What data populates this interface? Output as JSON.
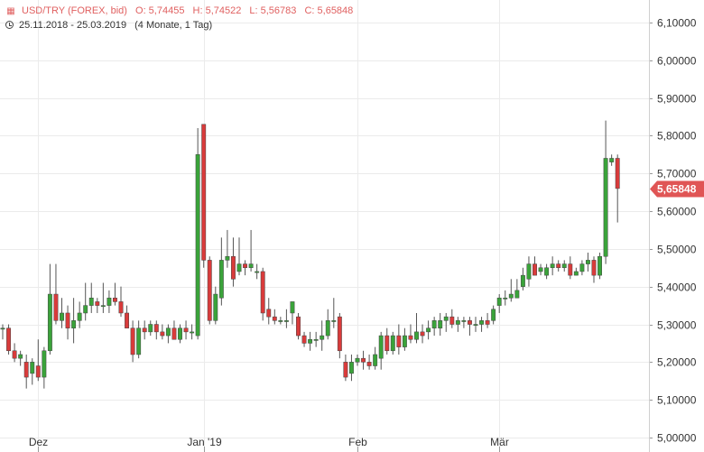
{
  "header": {
    "icon": "chart-icon",
    "symbol": "USD/TRY (FOREX, bid)",
    "open": "O: 5,74455",
    "high": "H: 5,74522",
    "low": "L: 5,56783",
    "close": "C: 5,65848",
    "range_icon": "clock-icon",
    "date_range": "25.11.2018 - 25.03.2019",
    "duration": "(4 Monate, 1 Tag)"
  },
  "colors": {
    "up": "#3aa33a",
    "down": "#d93b3b",
    "grid": "#ebebeb",
    "price_tag": "#e05555",
    "header_text": "#e06060"
  },
  "chart_data": {
    "type": "candlestick",
    "title": "USD/TRY (FOREX, bid)",
    "ylim": [
      5.0,
      6.14
    ],
    "y_ticks": [
      "6,10000",
      "6,00000",
      "5,90000",
      "5,80000",
      "5,70000",
      "5,60000",
      "5,50000",
      "5,40000",
      "5,30000",
      "5,20000",
      "5,10000",
      "5,00000"
    ],
    "x_labels": [
      {
        "label": "Dez",
        "index": 6
      },
      {
        "label": "Jan '19",
        "index": 34
      },
      {
        "label": "Feb",
        "index": 60
      },
      {
        "label": "Mär",
        "index": 84
      }
    ],
    "grid": true,
    "last_price_label": "5,65848",
    "candles": [
      [
        5.29,
        5.3,
        5.26,
        5.29
      ],
      [
        5.29,
        5.3,
        5.22,
        5.23
      ],
      [
        5.23,
        5.25,
        5.2,
        5.21
      ],
      [
        5.21,
        5.23,
        5.19,
        5.22
      ],
      [
        5.2,
        5.22,
        5.13,
        5.16
      ],
      [
        5.17,
        5.21,
        5.14,
        5.2
      ],
      [
        5.19,
        5.26,
        5.15,
        5.16
      ],
      [
        5.16,
        5.24,
        5.13,
        5.23
      ],
      [
        5.23,
        5.46,
        5.22,
        5.38
      ],
      [
        5.38,
        5.46,
        5.3,
        5.31
      ],
      [
        5.31,
        5.37,
        5.29,
        5.33
      ],
      [
        5.33,
        5.35,
        5.26,
        5.29
      ],
      [
        5.29,
        5.37,
        5.25,
        5.31
      ],
      [
        5.31,
        5.36,
        5.29,
        5.33
      ],
      [
        5.33,
        5.41,
        5.31,
        5.35
      ],
      [
        5.35,
        5.41,
        5.33,
        5.37
      ],
      [
        5.36,
        5.37,
        5.33,
        5.35
      ],
      [
        5.35,
        5.41,
        5.33,
        5.35
      ],
      [
        5.35,
        5.39,
        5.33,
        5.37
      ],
      [
        5.37,
        5.41,
        5.35,
        5.36
      ],
      [
        5.36,
        5.4,
        5.32,
        5.33
      ],
      [
        5.33,
        5.35,
        5.29,
        5.29
      ],
      [
        5.29,
        5.31,
        5.2,
        5.22
      ],
      [
        5.22,
        5.31,
        5.21,
        5.29
      ],
      [
        5.29,
        5.31,
        5.26,
        5.28
      ],
      [
        5.28,
        5.31,
        5.27,
        5.3
      ],
      [
        5.3,
        5.31,
        5.26,
        5.28
      ],
      [
        5.28,
        5.3,
        5.26,
        5.27
      ],
      [
        5.27,
        5.3,
        5.25,
        5.29
      ],
      [
        5.29,
        5.31,
        5.26,
        5.26
      ],
      [
        5.26,
        5.3,
        5.25,
        5.29
      ],
      [
        5.29,
        5.31,
        5.26,
        5.28
      ],
      [
        5.28,
        5.3,
        5.26,
        5.28
      ],
      [
        5.27,
        5.82,
        5.26,
        5.75
      ],
      [
        5.83,
        5.83,
        5.45,
        5.47
      ],
      [
        5.47,
        5.48,
        5.3,
        5.31
      ],
      [
        5.31,
        5.4,
        5.3,
        5.38
      ],
      [
        5.37,
        5.53,
        5.35,
        5.47
      ],
      [
        5.47,
        5.55,
        5.45,
        5.48
      ],
      [
        5.48,
        5.53,
        5.4,
        5.42
      ],
      [
        5.44,
        5.53,
        5.43,
        5.46
      ],
      [
        5.46,
        5.47,
        5.43,
        5.45
      ],
      [
        5.45,
        5.55,
        5.44,
        5.46
      ],
      [
        5.44,
        5.46,
        5.42,
        5.44
      ],
      [
        5.44,
        5.45,
        5.31,
        5.33
      ],
      [
        5.34,
        5.37,
        5.3,
        5.32
      ],
      [
        5.32,
        5.34,
        5.3,
        5.31
      ],
      [
        5.31,
        5.32,
        5.3,
        5.31
      ],
      [
        5.31,
        5.34,
        5.29,
        5.31
      ],
      [
        5.33,
        5.36,
        5.3,
        5.36
      ],
      [
        5.32,
        5.33,
        5.26,
        5.27
      ],
      [
        5.27,
        5.28,
        5.24,
        5.25
      ],
      [
        5.25,
        5.28,
        5.23,
        5.26
      ],
      [
        5.26,
        5.28,
        5.24,
        5.26
      ],
      [
        5.26,
        5.31,
        5.23,
        5.27
      ],
      [
        5.27,
        5.34,
        5.26,
        5.31
      ],
      [
        5.31,
        5.37,
        5.29,
        5.31
      ],
      [
        5.32,
        5.33,
        5.21,
        5.23
      ],
      [
        5.2,
        5.22,
        5.15,
        5.16
      ],
      [
        5.17,
        5.22,
        5.15,
        5.2
      ],
      [
        5.2,
        5.22,
        5.19,
        5.21
      ],
      [
        5.21,
        5.23,
        5.18,
        5.2
      ],
      [
        5.2,
        5.22,
        5.18,
        5.19
      ],
      [
        5.19,
        5.24,
        5.18,
        5.22
      ],
      [
        5.21,
        5.28,
        5.18,
        5.27
      ],
      [
        5.27,
        5.29,
        5.22,
        5.23
      ],
      [
        5.23,
        5.28,
        5.22,
        5.27
      ],
      [
        5.27,
        5.3,
        5.22,
        5.24
      ],
      [
        5.24,
        5.29,
        5.23,
        5.27
      ],
      [
        5.27,
        5.3,
        5.25,
        5.26
      ],
      [
        5.26,
        5.33,
        5.25,
        5.28
      ],
      [
        5.28,
        5.3,
        5.25,
        5.27
      ],
      [
        5.28,
        5.31,
        5.26,
        5.29
      ],
      [
        5.29,
        5.32,
        5.27,
        5.31
      ],
      [
        5.29,
        5.33,
        5.27,
        5.31
      ],
      [
        5.31,
        5.33,
        5.28,
        5.32
      ],
      [
        5.32,
        5.34,
        5.29,
        5.3
      ],
      [
        5.3,
        5.32,
        5.28,
        5.31
      ],
      [
        5.31,
        5.32,
        5.29,
        5.31
      ],
      [
        5.31,
        5.32,
        5.27,
        5.3
      ],
      [
        5.3,
        5.32,
        5.28,
        5.3
      ],
      [
        5.3,
        5.32,
        5.28,
        5.31
      ],
      [
        5.31,
        5.33,
        5.29,
        5.3
      ],
      [
        5.31,
        5.35,
        5.3,
        5.34
      ],
      [
        5.35,
        5.38,
        5.33,
        5.37
      ],
      [
        5.37,
        5.39,
        5.35,
        5.37
      ],
      [
        5.37,
        5.42,
        5.36,
        5.38
      ],
      [
        5.37,
        5.42,
        5.37,
        5.39
      ],
      [
        5.4,
        5.45,
        5.39,
        5.43
      ],
      [
        5.42,
        5.48,
        5.4,
        5.46
      ],
      [
        5.46,
        5.48,
        5.43,
        5.43
      ],
      [
        5.44,
        5.46,
        5.43,
        5.45
      ],
      [
        5.43,
        5.46,
        5.42,
        5.45
      ],
      [
        5.45,
        5.48,
        5.43,
        5.46
      ],
      [
        5.46,
        5.47,
        5.44,
        5.45
      ],
      [
        5.45,
        5.47,
        5.44,
        5.46
      ],
      [
        5.46,
        5.48,
        5.42,
        5.43
      ],
      [
        5.43,
        5.45,
        5.43,
        5.44
      ],
      [
        5.44,
        5.47,
        5.43,
        5.46
      ],
      [
        5.46,
        5.49,
        5.44,
        5.47
      ],
      [
        5.47,
        5.48,
        5.41,
        5.43
      ],
      [
        5.43,
        5.49,
        5.42,
        5.48
      ],
      [
        5.48,
        5.84,
        5.46,
        5.74
      ],
      [
        5.73,
        5.75,
        5.72,
        5.74
      ],
      [
        5.74,
        5.75,
        5.57,
        5.66
      ]
    ]
  }
}
